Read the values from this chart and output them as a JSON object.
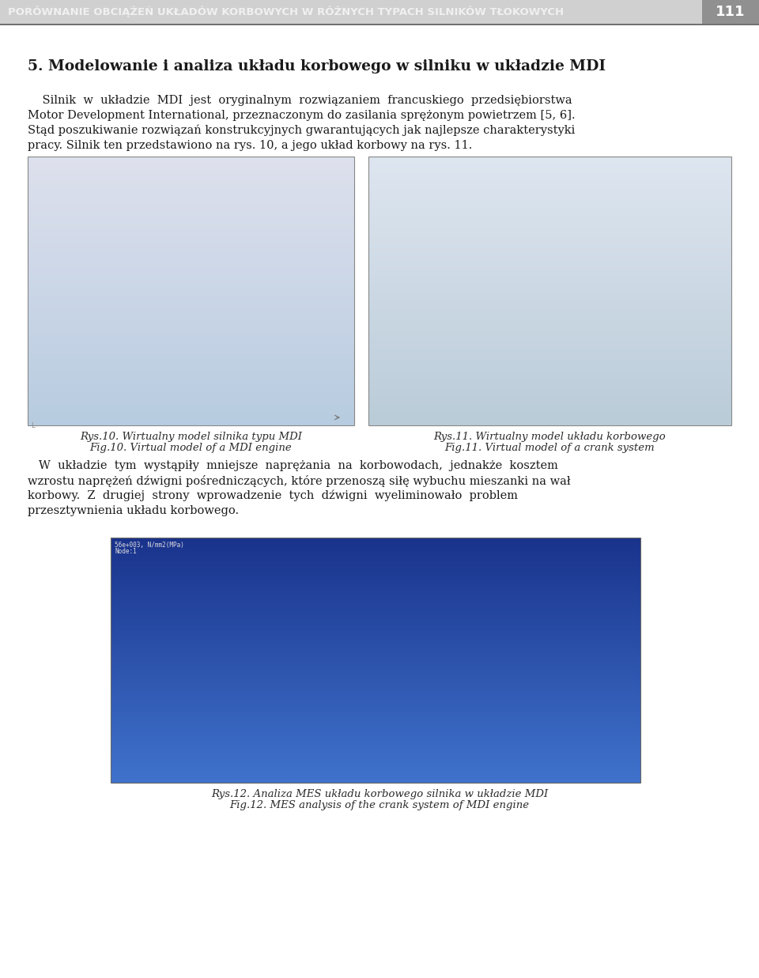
{
  "header_text": "PORÓWNANIE OBCIĄŻEŃ UKŁADÓW KORBOWYCH W RÓŻNYCH TYPACH SILNIKÓW TŁOKOWYCH",
  "page_number": "111",
  "page_bg": "#ffffff",
  "section_title": "5. Modelowanie i analiza układu korbowego w silniku w układzie MDI",
  "paragraph1_lines": [
    "    Silnik  w  układzie  MDI  jest  oryginalnym  rozwiązaniem  francuskiego  przedsiębiorstwa",
    "Motor Development International, przeznaczonym do zasilania sprężonym powietrzem [5, 6].",
    "Stąd poszukiwanie rozwiązań konstrukcyjnych gwarantujących jak najlepsze charakterystyki",
    "pracy. Silnik ten przedstawiono na rys. 10, a jego układ korbowy na rys. 11."
  ],
  "caption_left_line1": "Rys.10. Wirtualny model silnika typu MDI",
  "caption_left_line2": "Fig.10. Virtual model of a MDI engine",
  "caption_right_line1": "Rys.11. Wirtualny model układu korbowego",
  "caption_right_line2": "Fig.11. Virtual model of a crank system",
  "paragraph2_lines": [
    "   W  układzie  tym  wystąpiły  mniejsze  naprężania  na  korbowodach,  jednakże  kosztem",
    "wzrostu naprężeń dźwigni pośredniczących, które przenoszą siłę wybuchu mieszanki na wał",
    "korbowy.  Z  drugiej  strony  wprowadzenie  tych  dźwigni  wyeliminowało  problem",
    "przesztywnienia układu korbowego."
  ],
  "caption_bottom_line1": "Rys.12. Analiza MES układu korbowego silnika w układzie MDI",
  "caption_bottom_line2": "Fig.12. MES analysis of the crank system of MDI engine",
  "text_color": "#1a1a1a",
  "caption_color": "#2a2a2a",
  "header_font_size": 9.5,
  "section_title_font_size": 13.5,
  "body_font_size": 10.5,
  "caption_font_size": 9.5,
  "img_left_bg": "#aec8d8",
  "img_right_bg": "#b8ccd6",
  "img_bottom_bg": "#2855a0",
  "header_bar_color": "#d0d0d0",
  "header_line_color": "#555555",
  "page_num_box_color": "#909090"
}
